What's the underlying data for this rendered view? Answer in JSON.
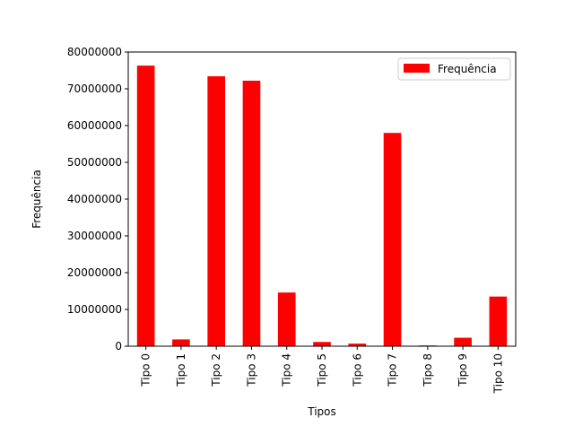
{
  "chart_data": {
    "type": "bar",
    "title": "",
    "xlabel": "Tipos",
    "ylabel": "Frequência",
    "categories": [
      "Tipo 0",
      "Tipo 1",
      "Tipo 2",
      "Tipo 3",
      "Tipo 4",
      "Tipo 5",
      "Tipo 6",
      "Tipo 7",
      "Tipo 8",
      "Tipo 9",
      "Tipo 10"
    ],
    "series": [
      {
        "name": "Frequência",
        "color": "#ff0000",
        "values": [
          76300000,
          1850000,
          73400000,
          72200000,
          14600000,
          1150000,
          700000,
          58000000,
          200000,
          2300000,
          13500000
        ]
      }
    ],
    "ylim": [
      0,
      80000000
    ],
    "yticks": [
      0,
      10000000,
      20000000,
      30000000,
      40000000,
      50000000,
      60000000,
      70000000,
      80000000
    ],
    "ytick_labels": [
      "0",
      "10000000",
      "20000000",
      "30000000",
      "40000000",
      "50000000",
      "60000000",
      "70000000",
      "80000000"
    ],
    "grid": false,
    "legend_position": "top-right",
    "x_tick_rotation": "vertical"
  }
}
